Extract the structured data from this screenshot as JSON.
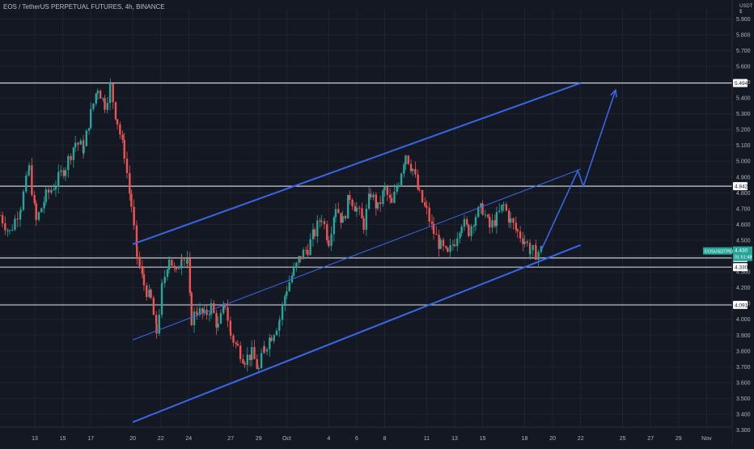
{
  "header": {
    "symbol": "EOS / TetherUS PERPETUAL FUTURES",
    "interval": "4h",
    "exchange": "BINANCE",
    "separator": ", "
  },
  "axis": {
    "currency_label": "USDT",
    "currency_sub": "$"
  },
  "colors": {
    "background": "#141823",
    "grid": "#1f2433",
    "up": "#26a69a",
    "down": "#ef5350",
    "channel": "#3867e6",
    "hline": "#c9ccd3",
    "axis_text": "#b2b5be",
    "price_tag_bg": "#26a69a"
  },
  "price_labels": {
    "symbol_tag": "EOSUSDTPERP",
    "current_price": "4.430",
    "countdown": "01:51:48"
  },
  "chart_data": {
    "type": "candlestick",
    "title": "EOS / TetherUS PERPETUAL FUTURES, 4h, BINANCE",
    "ylabel": "USDT",
    "ylim": [
      3.25,
      6.0
    ],
    "yticks": [
      "5.900",
      "5.800",
      "5.700",
      "5.600",
      "5.500",
      "5.400",
      "5.300",
      "5.200",
      "5.100",
      "5.000",
      "4.900",
      "4.800",
      "4.700",
      "4.600",
      "4.500",
      "4.400",
      "4.300",
      "4.200",
      "4.100",
      "4.000",
      "3.900",
      "3.800",
      "3.700",
      "3.600",
      "3.500",
      "3.400",
      "3.300"
    ],
    "xticks": [
      {
        "label": "13",
        "x": 13
      },
      {
        "label": "15",
        "x": 15
      },
      {
        "label": "17",
        "x": 17
      },
      {
        "label": "20",
        "x": 20
      },
      {
        "label": "22",
        "x": 22
      },
      {
        "label": "24",
        "x": 24
      },
      {
        "label": "27",
        "x": 27
      },
      {
        "label": "29",
        "x": 29
      },
      {
        "label": "Oct",
        "x": 31
      },
      {
        "label": "4",
        "x": 34
      },
      {
        "label": "6",
        "x": 36
      },
      {
        "label": "8",
        "x": 38
      },
      {
        "label": "11",
        "x": 41
      },
      {
        "label": "13",
        "x": 43
      },
      {
        "label": "15",
        "x": 45
      },
      {
        "label": "18",
        "x": 48
      },
      {
        "label": "20",
        "x": 50
      },
      {
        "label": "22",
        "x": 52
      },
      {
        "label": "25",
        "x": 55
      },
      {
        "label": "27",
        "x": 57
      },
      {
        "label": "29",
        "x": 59
      },
      {
        "label": "Nov",
        "x": 61
      }
    ],
    "price_path": [
      [
        10.5,
        4.66
      ],
      [
        11.2,
        4.55
      ],
      [
        12,
        4.72
      ],
      [
        12.6,
        4.95
      ],
      [
        13.1,
        4.62
      ],
      [
        13.8,
        4.78
      ],
      [
        14.5,
        4.86
      ],
      [
        15.2,
        4.97
      ],
      [
        15.9,
        5.12
      ],
      [
        16.5,
        5.08
      ],
      [
        17,
        5.3
      ],
      [
        17.5,
        5.47
      ],
      [
        18,
        5.36
      ],
      [
        18.4,
        5.47
      ],
      [
        18.9,
        5.25
      ],
      [
        19.4,
        5.05
      ],
      [
        19.9,
        4.72
      ],
      [
        20.3,
        4.4
      ],
      [
        20.8,
        4.22
      ],
      [
        21.3,
        4.12
      ],
      [
        21.7,
        3.92
      ],
      [
        22.1,
        4.2
      ],
      [
        22.6,
        4.4
      ],
      [
        23.1,
        4.28
      ],
      [
        23.5,
        4.42
      ],
      [
        23.9,
        4.35
      ],
      [
        24.2,
        4.0
      ],
      [
        24.6,
        4.06
      ],
      [
        25.1,
        4.02
      ],
      [
        25.6,
        4.08
      ],
      [
        26.1,
        3.95
      ],
      [
        26.6,
        4.1
      ],
      [
        27,
        3.9
      ],
      [
        27.5,
        3.82
      ],
      [
        28,
        3.75
      ],
      [
        28.5,
        3.78
      ],
      [
        29,
        3.68
      ],
      [
        29.4,
        3.82
      ],
      [
        29.9,
        3.9
      ],
      [
        30.5,
        4.0
      ],
      [
        31,
        4.2
      ],
      [
        31.5,
        4.3
      ],
      [
        32,
        4.4
      ],
      [
        32.5,
        4.45
      ],
      [
        33,
        4.55
      ],
      [
        33.5,
        4.65
      ],
      [
        34,
        4.5
      ],
      [
        34.5,
        4.72
      ],
      [
        35,
        4.62
      ],
      [
        35.5,
        4.78
      ],
      [
        36,
        4.7
      ],
      [
        36.5,
        4.6
      ],
      [
        37,
        4.8
      ],
      [
        37.5,
        4.7
      ],
      [
        38,
        4.82
      ],
      [
        38.5,
        4.72
      ],
      [
        39,
        4.88
      ],
      [
        39.5,
        5.05
      ],
      [
        40,
        4.95
      ],
      [
        40.5,
        4.78
      ],
      [
        41,
        4.68
      ],
      [
        41.5,
        4.55
      ],
      [
        42,
        4.46
      ],
      [
        42.5,
        4.4
      ],
      [
        43,
        4.5
      ],
      [
        43.5,
        4.62
      ],
      [
        44,
        4.56
      ],
      [
        44.5,
        4.66
      ],
      [
        45,
        4.7
      ],
      [
        45.5,
        4.58
      ],
      [
        46,
        4.64
      ],
      [
        46.5,
        4.72
      ],
      [
        47,
        4.62
      ],
      [
        47.5,
        4.55
      ],
      [
        48,
        4.5
      ],
      [
        48.4,
        4.44
      ],
      [
        48.8,
        4.42
      ],
      [
        49.2,
        4.44
      ]
    ],
    "horizontal_levels": [
      {
        "price": "5.494",
        "value": 5.494
      },
      {
        "price": "4.842",
        "value": 4.842
      },
      {
        "price": "4.388",
        "value": 4.388
      },
      {
        "price": "4.330",
        "value": 4.33
      },
      {
        "price": "4.091",
        "value": 4.091
      }
    ],
    "channel_lines": [
      {
        "role": "upper",
        "from": [
          20,
          4.475
        ],
        "to": [
          52,
          5.494
        ]
      },
      {
        "role": "middle",
        "from": [
          20,
          3.87
        ],
        "to": [
          52,
          4.95
        ]
      },
      {
        "role": "lower",
        "from": [
          20,
          3.35
        ],
        "to": [
          52,
          4.47
        ]
      }
    ],
    "projection_path": [
      [
        49.2,
        4.44
      ],
      [
        51.8,
        4.94
      ],
      [
        52.2,
        4.842
      ],
      [
        54.5,
        5.45
      ]
    ]
  }
}
